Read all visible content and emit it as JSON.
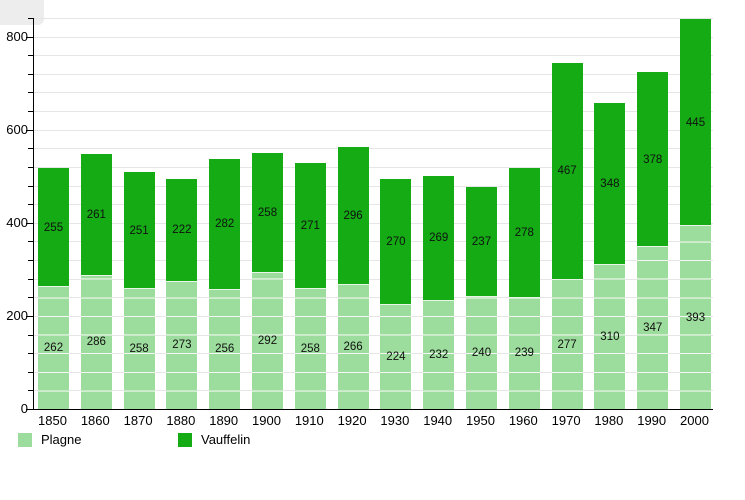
{
  "chart_data": {
    "type": "bar",
    "stacked": true,
    "title": "",
    "xlabel": "",
    "ylabel": "",
    "categories": [
      "1850",
      "1860",
      "1870",
      "1880",
      "1890",
      "1900",
      "1910",
      "1920",
      "1930",
      "1940",
      "1950",
      "1960",
      "1970",
      "1980",
      "1990",
      "2000"
    ],
    "series": [
      {
        "name": "Plagne",
        "color": "#9cdc9c",
        "values": [
          262,
          286,
          258,
          273,
          256,
          292,
          258,
          266,
          224,
          232,
          240,
          239,
          277,
          310,
          347,
          393
        ]
      },
      {
        "name": "Vauffelin",
        "color": "#14ab14",
        "values": [
          255,
          261,
          251,
          222,
          282,
          258,
          271,
          296,
          270,
          269,
          237,
          278,
          467,
          348,
          378,
          445
        ]
      }
    ],
    "totals": [
      517,
      547,
      509,
      495,
      538,
      550,
      529,
      562,
      494,
      501,
      477,
      517,
      744,
      658,
      725,
      838
    ],
    "ylim": [
      0,
      840
    ],
    "ytick_values": [
      0,
      200,
      400,
      600,
      800
    ],
    "ytick_labels": [
      "0",
      "200",
      "400",
      "600",
      "800"
    ],
    "minor_tick_step": 40,
    "grid": true,
    "value_labels": "centered-in-segment",
    "legend_position": "bottom-left"
  },
  "legend": {
    "items": [
      {
        "label": "Plagne",
        "color": "#9cdc9c"
      },
      {
        "label": "Vauffelin",
        "color": "#14ab14"
      }
    ]
  },
  "colors": {
    "background": "#ffffff",
    "gridline": "#e6e6e6",
    "axis": "#000000",
    "value_text": "#111111",
    "plagne_light_green": "#9cdc9c",
    "vauffelin_dark_green": "#14ab14",
    "segment_separator": "#ffffff",
    "corner_artifact": "#ededed"
  }
}
